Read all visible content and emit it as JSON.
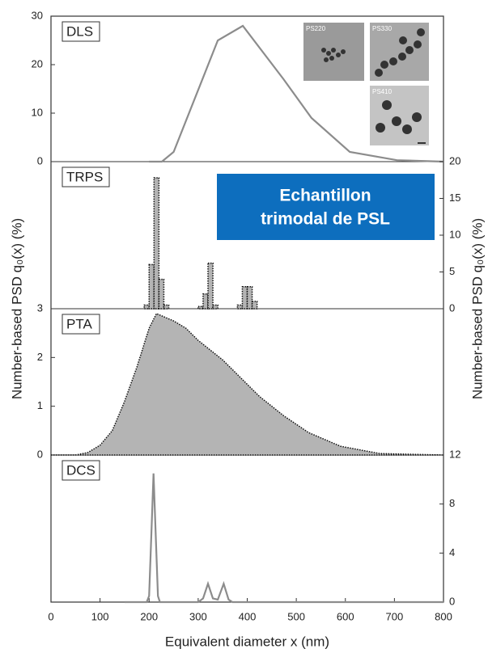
{
  "chart_data": [
    {
      "type": "line",
      "label": "DLS",
      "color": "#8c8c8c",
      "x": [
        200,
        226,
        250,
        340,
        391,
        474,
        531,
        609,
        705,
        800
      ],
      "values": [
        0,
        0,
        2,
        25,
        28,
        17,
        9,
        2,
        0.3,
        0
      ],
      "xlim": [
        0,
        800
      ],
      "ylim": [
        0,
        30
      ],
      "yticks": [
        0,
        10,
        20,
        30
      ],
      "ylabel": "Number-based PSD q₀(x) (%)",
      "inset_labels": [
        "PS220",
        "PS330",
        "PS410"
      ]
    },
    {
      "type": "histogram",
      "label": "TRPS",
      "color": "#b4b4b4",
      "axis": "y2",
      "bins": [
        190,
        200,
        210,
        220,
        230,
        240,
        250,
        260,
        270,
        280,
        290,
        300,
        310,
        320,
        330,
        340,
        350,
        360,
        370,
        380,
        390,
        400,
        410,
        420
      ],
      "values": [
        0.5,
        6,
        17.8,
        4,
        0.5,
        0,
        0,
        0,
        0,
        0,
        0,
        0.3,
        2,
        6.2,
        0.5,
        0,
        0,
        0,
        0,
        0.5,
        3,
        3,
        1
      ],
      "xlim": [
        0,
        800
      ],
      "y2lim": [
        0,
        20
      ],
      "y2ticks": [
        0,
        5,
        10,
        15,
        20
      ],
      "y2label": "Number-based PSD q₀(x) (%)",
      "annotation": [
        "Echantillon",
        "trimodal de PSL"
      ]
    },
    {
      "type": "area",
      "label": "PTA",
      "color": "#b4b4b4",
      "x": [
        0,
        50,
        75,
        100,
        125,
        150,
        175,
        200,
        215,
        250,
        275,
        300,
        350,
        400,
        425,
        475,
        525,
        590,
        670,
        800
      ],
      "values": [
        0,
        0,
        0.05,
        0.2,
        0.5,
        1.1,
        1.8,
        2.6,
        2.9,
        2.75,
        2.6,
        2.35,
        1.95,
        1.45,
        1.2,
        0.8,
        0.46,
        0.18,
        0.03,
        0
      ],
      "xlim": [
        0,
        800
      ],
      "ylim": [
        0,
        3
      ],
      "yticks": [
        0,
        1,
        2,
        3
      ]
    },
    {
      "type": "line",
      "label": "DCS",
      "color": "#8c8c8c",
      "axis": "y2",
      "x": [
        150,
        195,
        200,
        205,
        209,
        213,
        218,
        222,
        300,
        310,
        320,
        330,
        340,
        352,
        362,
        370,
        800
      ],
      "values": [
        0,
        0,
        0.5,
        6,
        10.5,
        6,
        0.5,
        0,
        0,
        0.3,
        1.5,
        0.3,
        0.2,
        1.5,
        0.2,
        0,
        0
      ],
      "xlim": [
        0,
        800
      ],
      "y2lim": [
        0,
        12
      ],
      "y2ticks": [
        0,
        4,
        8,
        12
      ],
      "xticks": [
        0,
        100,
        200,
        300,
        400,
        500,
        600,
        700,
        800
      ],
      "xlabel": "Equivalent diameter x (nm)"
    }
  ]
}
